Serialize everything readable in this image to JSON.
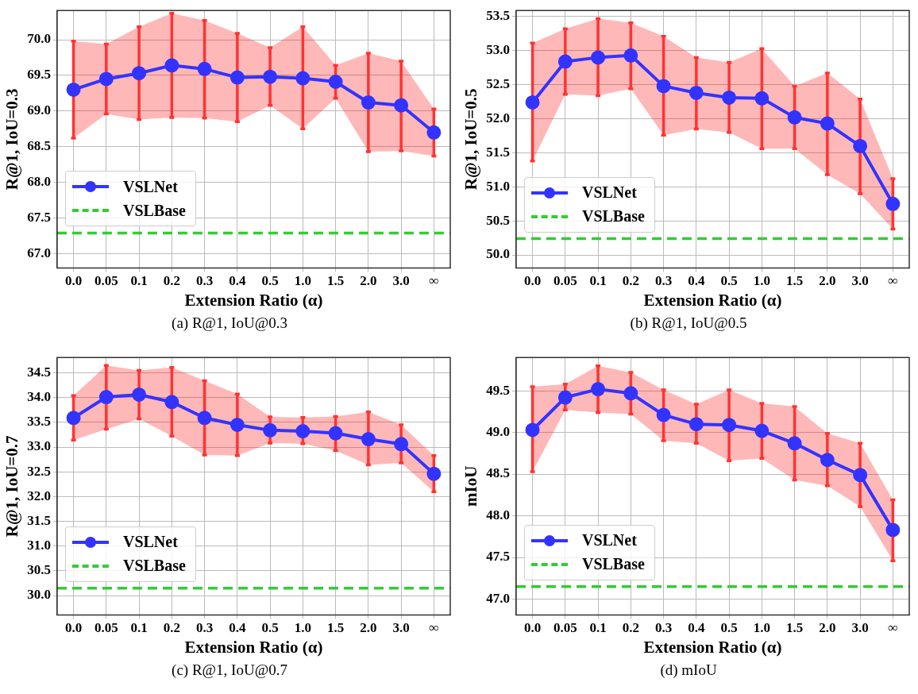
{
  "chart_data": [
    {
      "type": "line",
      "title": "(a)  R@1, IoU@0.3",
      "xlabel": "Extension Ratio (α)",
      "ylabel": "R@1, IoU=0.3",
      "categories": [
        "0.0",
        "0.05",
        "0.1",
        "0.2",
        "0.3",
        "0.4",
        "0.5",
        "1.0",
        "1.5",
        "2.0",
        "3.0",
        "∞"
      ],
      "series": [
        {
          "name": "VSLNet",
          "color": "#3333ff",
          "values": [
            69.3,
            69.45,
            69.53,
            69.64,
            69.59,
            69.47,
            69.48,
            69.46,
            69.41,
            69.12,
            69.08,
            68.7
          ],
          "lower": [
            68.62,
            68.96,
            68.88,
            68.91,
            68.9,
            68.85,
            69.08,
            68.75,
            69.18,
            68.43,
            68.44,
            68.37
          ],
          "upper": [
            69.98,
            69.94,
            70.18,
            70.37,
            70.27,
            70.09,
            69.89,
            70.18,
            69.64,
            69.81,
            69.7,
            69.03
          ],
          "errors": [
            [
              68.62,
              69.98
            ],
            [
              68.96,
              69.94
            ],
            [
              68.88,
              70.18
            ],
            [
              68.91,
              70.37
            ],
            [
              68.9,
              70.27
            ],
            [
              68.85,
              70.09
            ],
            [
              69.08,
              69.89
            ],
            [
              68.75,
              70.18
            ],
            [
              69.18,
              69.64
            ],
            [
              68.43,
              69.81
            ],
            [
              68.44,
              69.7
            ],
            [
              68.37,
              69.03
            ]
          ]
        }
      ],
      "ref_lines": [
        {
          "axis": "y",
          "value": 67.29,
          "label": "VSLBase",
          "color": "#33cc33",
          "line_style": "dashed"
        }
      ],
      "ylim": [
        66.8,
        70.41
      ],
      "yticks": [
        {
          "value": 67,
          "label": "67.0"
        },
        67.5,
        {
          "value": 68,
          "label": "68.0"
        },
        68.5,
        {
          "value": 69,
          "label": "69.0"
        },
        69.5,
        {
          "value": 70,
          "label": "70.0"
        }
      ],
      "grid": true,
      "legend": "bottom left",
      "marker": "circle",
      "line_style": "solid"
    },
    {
      "type": "line",
      "title": "(b)  R@1, IoU@0.5",
      "xlabel": "Extension Ratio (α)",
      "ylabel": "R@1, IoU=0.5",
      "categories": [
        "0.0",
        "0.05",
        "0.1",
        "0.2",
        "0.3",
        "0.4",
        "0.5",
        "1.0",
        "1.5",
        "2.0",
        "3.0",
        "∞"
      ],
      "series": [
        {
          "name": "VSLNet",
          "color": "#3333ff",
          "values": [
            52.24,
            52.84,
            52.9,
            52.93,
            52.48,
            52.38,
            52.31,
            52.3,
            52.02,
            51.93,
            51.6,
            50.75
          ],
          "lower": [
            51.38,
            52.36,
            52.34,
            52.44,
            51.76,
            51.85,
            51.8,
            51.56,
            51.56,
            51.18,
            50.9,
            50.38
          ],
          "upper": [
            53.11,
            53.32,
            53.47,
            53.41,
            53.21,
            52.9,
            52.83,
            53.03,
            52.48,
            52.67,
            52.29,
            51.12
          ],
          "errors": [
            [
              51.38,
              53.11
            ],
            [
              52.36,
              53.32
            ],
            [
              52.34,
              53.47
            ],
            [
              52.44,
              53.41
            ],
            [
              51.76,
              53.21
            ],
            [
              51.85,
              52.9
            ],
            [
              51.8,
              52.83
            ],
            [
              51.56,
              53.03
            ],
            [
              51.56,
              52.48
            ],
            [
              51.18,
              52.67
            ],
            [
              50.9,
              52.29
            ],
            [
              50.38,
              51.12
            ]
          ]
        }
      ],
      "ref_lines": [
        {
          "axis": "y",
          "value": 50.24,
          "label": "VSLBase",
          "color": "#33cc33",
          "line_style": "dashed"
        }
      ],
      "ylim": [
        49.81,
        53.59
      ],
      "yticks": [
        {
          "value": 50,
          "label": "50.0"
        },
        50.5,
        {
          "value": 51,
          "label": "51.0"
        },
        51.5,
        {
          "value": 52,
          "label": "52.0"
        },
        52.5,
        {
          "value": 53,
          "label": "53.0"
        },
        53.5
      ],
      "grid": true,
      "legend": "bottom left",
      "marker": "circle",
      "line_style": "solid"
    },
    {
      "type": "line",
      "title": "(c)  R@1, IoU@0.7",
      "xlabel": "Extension Ratio (α)",
      "ylabel": "R@1, IoU=0.7",
      "categories": [
        "0.0",
        "0.05",
        "0.1",
        "0.2",
        "0.3",
        "0.4",
        "0.5",
        "1.0",
        "1.5",
        "2.0",
        "3.0",
        "∞"
      ],
      "series": [
        {
          "name": "VSLNet",
          "color": "#3333ff",
          "values": [
            33.59,
            34.01,
            34.06,
            33.91,
            33.59,
            33.45,
            33.34,
            33.32,
            33.28,
            33.16,
            33.06,
            32.46
          ],
          "lower": [
            33.14,
            33.36,
            33.57,
            33.22,
            32.84,
            32.83,
            33.08,
            33.07,
            32.93,
            32.64,
            32.68,
            32.1
          ],
          "upper": [
            34.04,
            34.65,
            34.55,
            34.61,
            34.34,
            34.07,
            33.61,
            33.6,
            33.62,
            33.71,
            33.45,
            32.83
          ],
          "errors": [
            [
              33.14,
              34.04
            ],
            [
              33.36,
              34.65
            ],
            [
              33.57,
              34.55
            ],
            [
              33.22,
              34.61
            ],
            [
              32.84,
              34.34
            ],
            [
              32.83,
              34.07
            ],
            [
              33.08,
              33.61
            ],
            [
              33.07,
              33.6
            ],
            [
              32.93,
              33.62
            ],
            [
              32.64,
              33.71
            ],
            [
              32.68,
              33.45
            ],
            [
              32.1,
              32.83
            ]
          ]
        }
      ],
      "ref_lines": [
        {
          "axis": "y",
          "value": 30.15,
          "label": "VSLBase",
          "color": "#33cc33",
          "line_style": "dashed"
        }
      ],
      "ylim": [
        29.61,
        34.81
      ],
      "yticks": [
        {
          "value": 30,
          "label": "30.0"
        },
        30.5,
        {
          "value": 31,
          "label": "31.0"
        },
        31.5,
        {
          "value": 32,
          "label": "32.0"
        },
        32.5,
        {
          "value": 33,
          "label": "33.0"
        },
        33.5,
        {
          "value": 34,
          "label": "34.0"
        },
        34.5
      ],
      "grid": true,
      "legend": "bottom left",
      "marker": "circle",
      "line_style": "solid"
    },
    {
      "type": "line",
      "title": "(d)  mIoU",
      "xlabel": "Extension Ratio (α)",
      "ylabel": "mIoU",
      "categories": [
        "0.0",
        "0.05",
        "0.1",
        "0.2",
        "0.3",
        "0.4",
        "0.5",
        "1.0",
        "1.5",
        "2.0",
        "3.0",
        "∞"
      ],
      "series": [
        {
          "name": "VSLNet",
          "color": "#3333ff",
          "values": [
            49.03,
            49.42,
            49.52,
            49.47,
            49.21,
            49.1,
            49.09,
            49.02,
            48.87,
            48.67,
            48.49,
            47.83
          ],
          "lower": [
            48.53,
            49.27,
            49.24,
            49.22,
            48.9,
            48.87,
            48.66,
            48.69,
            48.43,
            48.36,
            48.11,
            47.46
          ],
          "upper": [
            49.55,
            49.58,
            49.8,
            49.72,
            49.51,
            49.34,
            49.51,
            49.35,
            49.31,
            48.99,
            48.87,
            48.19
          ],
          "errors": [
            [
              48.53,
              49.55
            ],
            [
              49.27,
              49.58
            ],
            [
              49.24,
              49.8
            ],
            [
              49.22,
              49.72
            ],
            [
              48.9,
              49.51
            ],
            [
              48.87,
              49.34
            ],
            [
              48.66,
              49.51
            ],
            [
              48.69,
              49.35
            ],
            [
              48.43,
              49.31
            ],
            [
              48.36,
              48.99
            ],
            [
              48.11,
              48.87
            ],
            [
              47.46,
              48.19
            ]
          ]
        }
      ],
      "ref_lines": [
        {
          "axis": "y",
          "value": 47.15,
          "label": "VSLBase",
          "color": "#33cc33",
          "line_style": "dashed"
        }
      ],
      "ylim": [
        46.81,
        49.9
      ],
      "yticks": [
        {
          "value": 47,
          "label": "47.0"
        },
        47.5,
        {
          "value": 48,
          "label": "48.0"
        },
        48.5,
        {
          "value": 49,
          "label": "49.0"
        },
        49.5
      ],
      "grid": true,
      "legend": "bottom left",
      "marker": "circle",
      "line_style": "solid"
    }
  ]
}
